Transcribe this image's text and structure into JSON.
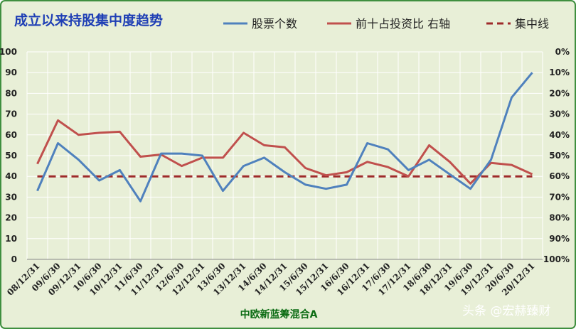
{
  "chart_data": {
    "type": "line",
    "title": "成立以来持股集中度趋势",
    "xlabel": "中欧新蓝筹混合A",
    "categories": [
      "08/12/31",
      "09/6/30",
      "09/12/31",
      "10/6/30",
      "10/12/31",
      "11/6/30",
      "11/12/31",
      "12/6/30",
      "12/12/31",
      "13/6/30",
      "13/12/31",
      "14/6/30",
      "14/12/31",
      "15/6/30",
      "15/12/31",
      "16/6/30",
      "16/12/31",
      "17/6/30",
      "17/12/31",
      "18/6/30",
      "18/12/31",
      "19/6/30",
      "19/12/31",
      "20/6/30",
      "20/12/31"
    ],
    "y_left": {
      "ticks": [
        "0",
        "10",
        "20",
        "30",
        "40",
        "50",
        "60",
        "70",
        "80",
        "90",
        "100"
      ],
      "range": [
        0,
        100
      ]
    },
    "y_right": {
      "ticks": [
        "0%",
        "10%",
        "20%",
        "30%",
        "40%",
        "50%",
        "60%",
        "70%",
        "80%",
        "90%",
        "100%"
      ],
      "range": [
        0,
        100
      ],
      "inverted": true
    },
    "series": [
      {
        "name": "股票个数",
        "axis": "left",
        "color": "#4f81bd",
        "style": "solid",
        "values": [
          33,
          56,
          48,
          38,
          43,
          28,
          51,
          51,
          50,
          33,
          45,
          49,
          42,
          36,
          34,
          36,
          56,
          53,
          43,
          48,
          41,
          34,
          48,
          78,
          90
        ]
      },
      {
        "name": "前十占投资比 右轴",
        "axis": "right",
        "color": "#c0504d",
        "style": "solid",
        "values": [
          54,
          33,
          40,
          39,
          38.5,
          50.5,
          49.5,
          55,
          51,
          51,
          39,
          45,
          46,
          56,
          59.5,
          58,
          53,
          55.5,
          60,
          45,
          53,
          63.5,
          53.5,
          54.5,
          59
        ]
      },
      {
        "name": "集中线",
        "axis": "left",
        "color": "#9e2a2a",
        "style": "dashed",
        "values": [
          40,
          40,
          40,
          40,
          40,
          40,
          40,
          40,
          40,
          40,
          40,
          40,
          40,
          40,
          40,
          40,
          40,
          40,
          40,
          40,
          40,
          40,
          40,
          40,
          40
        ]
      }
    ],
    "grid": true,
    "legend": "top"
  },
  "colors": {
    "background": "#e8efd7",
    "border": "#3f8f3f",
    "grid": "#ffffff"
  },
  "watermark": "头条 @宏赫臻财"
}
